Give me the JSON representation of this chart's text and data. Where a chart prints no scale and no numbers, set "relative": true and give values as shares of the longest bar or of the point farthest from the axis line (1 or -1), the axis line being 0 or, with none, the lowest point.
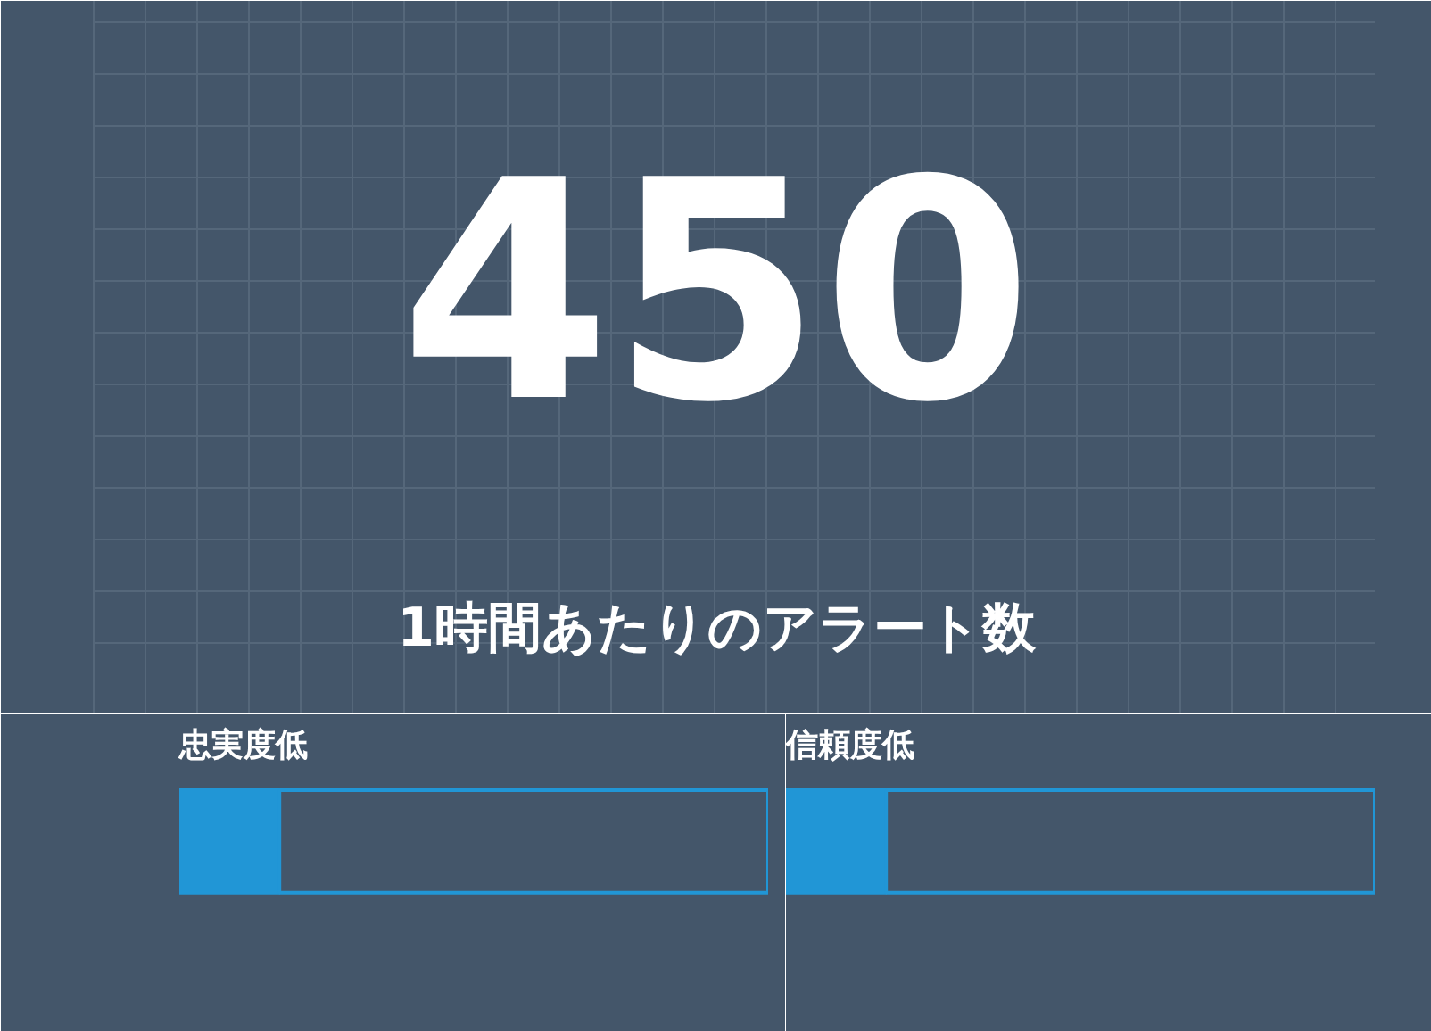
{
  "chart_data": [
    {
      "type": "other",
      "title": "450",
      "subtitle": "1時間あたりのアラート数"
    },
    {
      "type": "bar",
      "title": "忠実度低",
      "orientation": "horizontal",
      "stacked": true,
      "relative": true,
      "categories": [
        null
      ],
      "series": [
        {
          "color": "#2196d6",
          "values": [
            0.17
          ]
        },
        {
          "color": "#44566a",
          "values": [
            0.83
          ]
        }
      ]
    },
    {
      "type": "bar",
      "title": "信頼度低",
      "orientation": "horizontal",
      "stacked": true,
      "relative": true,
      "categories": [
        null
      ],
      "series": [
        {
          "color": "#2196d6",
          "values": [
            0.17
          ]
        },
        {
          "color": "#44566a",
          "values": [
            0.83
          ]
        }
      ]
    }
  ]
}
